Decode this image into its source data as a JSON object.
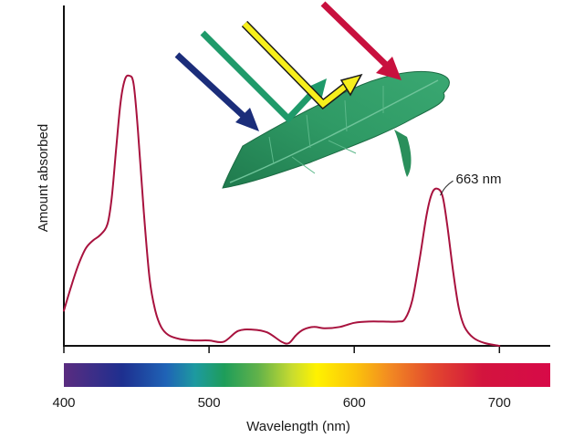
{
  "chart_data": {
    "type": "line",
    "xlabel": "Wavelength (nm)",
    "ylabel": "Amount absorbed",
    "xlim": [
      400,
      735
    ],
    "ylim": [
      0,
      1
    ],
    "x_ticks": [
      400,
      500,
      600,
      700
    ],
    "tick_labels": [
      "400",
      "500",
      "600",
      "700"
    ],
    "annotation": {
      "text": "663 nm",
      "x": 658,
      "y": 0.55
    },
    "series": [
      {
        "color": "#a8123e",
        "points": [
          [
            400,
            0.13
          ],
          [
            405,
            0.22
          ],
          [
            410,
            0.3
          ],
          [
            415,
            0.36
          ],
          [
            420,
            0.39
          ],
          [
            425,
            0.41
          ],
          [
            430,
            0.45
          ],
          [
            433,
            0.55
          ],
          [
            436,
            0.73
          ],
          [
            439,
            0.9
          ],
          [
            442,
            0.985
          ],
          [
            445,
            1.0
          ],
          [
            448,
            0.97
          ],
          [
            451,
            0.8
          ],
          [
            455,
            0.5
          ],
          [
            459,
            0.25
          ],
          [
            463,
            0.13
          ],
          [
            467,
            0.07
          ],
          [
            472,
            0.04
          ],
          [
            480,
            0.025
          ],
          [
            490,
            0.02
          ],
          [
            500,
            0.02
          ],
          [
            510,
            0.015
          ],
          [
            520,
            0.055
          ],
          [
            530,
            0.06
          ],
          [
            540,
            0.05
          ],
          [
            550,
            0.015
          ],
          [
            555,
            0.01
          ],
          [
            560,
            0.04
          ],
          [
            565,
            0.06
          ],
          [
            572,
            0.07
          ],
          [
            580,
            0.065
          ],
          [
            590,
            0.07
          ],
          [
            600,
            0.085
          ],
          [
            610,
            0.09
          ],
          [
            620,
            0.09
          ],
          [
            630,
            0.09
          ],
          [
            635,
            0.1
          ],
          [
            640,
            0.17
          ],
          [
            645,
            0.32
          ],
          [
            650,
            0.49
          ],
          [
            654,
            0.57
          ],
          [
            658,
            0.58
          ],
          [
            661,
            0.55
          ],
          [
            664,
            0.45
          ],
          [
            668,
            0.28
          ],
          [
            672,
            0.14
          ],
          [
            676,
            0.07
          ],
          [
            682,
            0.03
          ],
          [
            690,
            0.01
          ],
          [
            700,
            0.0
          ]
        ]
      }
    ],
    "spectrum_bar": {
      "x_range": [
        400,
        735
      ]
    }
  }
}
